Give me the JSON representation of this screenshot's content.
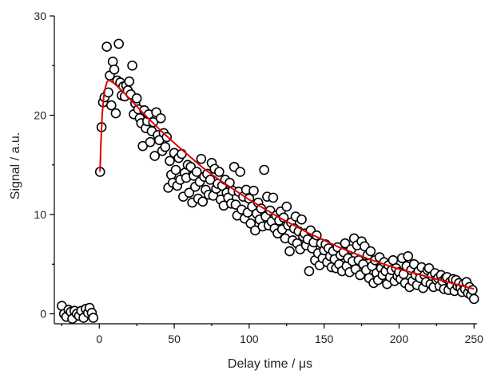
{
  "chart_data": {
    "type": "scatter",
    "xlabel": "Delay time / μs",
    "ylabel": "Signal / a.u.",
    "xlim": [
      -30,
      252
    ],
    "ylim": [
      -1,
      30
    ],
    "x_ticks": [
      0,
      50,
      100,
      150,
      200,
      250
    ],
    "y_ticks": [
      0,
      10,
      20,
      30
    ],
    "grid": false,
    "legend": "none",
    "series": [
      {
        "kind": "markers",
        "marker": "open-circle",
        "color": "#000000",
        "points": [
          [
            -25,
            0.8
          ],
          [
            -23.5,
            0
          ],
          [
            -22,
            -0.3
          ],
          [
            -20.5,
            0.4
          ],
          [
            -19,
            0.2
          ],
          [
            -18,
            -0.5
          ],
          [
            -16.5,
            0.3
          ],
          [
            -15,
            0
          ],
          [
            -13.5,
            -0.2
          ],
          [
            -12,
            0.3
          ],
          [
            -10.5,
            -0.4
          ],
          [
            -9,
            0.5
          ],
          [
            -7.5,
            0.1
          ],
          [
            -6.5,
            0.6
          ],
          [
            -5,
            0.1
          ],
          [
            -4,
            -0.4
          ],
          [
            0.5,
            14.3
          ],
          [
            1.5,
            18.8
          ],
          [
            2.5,
            21.3
          ],
          [
            3.5,
            21.8
          ],
          [
            5,
            26.9
          ],
          [
            6,
            22.3
          ],
          [
            7,
            24
          ],
          [
            8,
            21
          ],
          [
            9,
            25.4
          ],
          [
            10,
            24.6
          ],
          [
            11,
            20.2
          ],
          [
            12,
            23.5
          ],
          [
            13,
            27.2
          ],
          [
            14,
            23.3
          ],
          [
            15,
            22
          ],
          [
            16,
            22.9
          ],
          [
            17,
            21.9
          ],
          [
            18,
            23
          ],
          [
            19,
            22.5
          ],
          [
            20,
            23.4
          ],
          [
            21,
            22.1
          ],
          [
            22,
            25
          ],
          [
            23,
            20.1
          ],
          [
            24,
            21.2
          ],
          [
            25,
            21.7
          ],
          [
            26,
            20.6
          ],
          [
            27,
            19.7
          ],
          [
            28,
            19.2
          ],
          [
            29,
            16.9
          ],
          [
            30,
            20.5
          ],
          [
            31,
            18.7
          ],
          [
            32,
            19.4
          ],
          [
            33,
            20.1
          ],
          [
            34,
            17.3
          ],
          [
            35,
            18.4
          ],
          [
            36,
            19.3
          ],
          [
            37,
            15.9
          ],
          [
            38,
            20.3
          ],
          [
            39,
            18
          ],
          [
            40,
            17.5
          ],
          [
            41,
            19.7
          ],
          [
            42,
            16.4
          ],
          [
            43,
            18.2
          ],
          [
            44,
            16.8
          ],
          [
            45,
            17.8
          ],
          [
            46,
            12.7
          ],
          [
            47,
            15.4
          ],
          [
            48,
            14
          ],
          [
            49,
            13.2
          ],
          [
            50,
            16.2
          ],
          [
            51,
            14.5
          ],
          [
            52,
            12.9
          ],
          [
            53,
            15.7
          ],
          [
            54,
            13.5
          ],
          [
            55,
            16.1
          ],
          [
            56,
            11.8
          ],
          [
            57,
            14.2
          ],
          [
            58,
            13.7
          ],
          [
            59,
            15
          ],
          [
            60,
            12.2
          ],
          [
            61,
            14.8
          ],
          [
            62,
            11.2
          ],
          [
            63,
            13.9
          ],
          [
            64,
            12.8
          ],
          [
            65,
            14.3
          ],
          [
            66,
            11.6
          ],
          [
            67,
            13.3
          ],
          [
            68,
            15.6
          ],
          [
            69,
            11.3
          ],
          [
            70,
            13.8
          ],
          [
            71,
            12.5
          ],
          [
            72,
            14.1
          ],
          [
            73,
            12
          ],
          [
            74,
            13.5
          ],
          [
            75,
            15.2
          ],
          [
            76,
            11.9
          ],
          [
            77,
            14.6
          ],
          [
            78,
            12.6
          ],
          [
            79,
            13.1
          ],
          [
            80,
            14.3
          ],
          [
            81,
            11.5
          ],
          [
            82,
            12.9
          ],
          [
            83,
            10.9
          ],
          [
            84,
            13.5
          ],
          [
            85,
            12.2
          ],
          [
            86,
            11.7
          ],
          [
            87,
            13.2
          ],
          [
            88,
            11.1
          ],
          [
            89,
            12.4
          ],
          [
            90,
            14.8
          ],
          [
            91,
            11
          ],
          [
            92,
            9.9
          ],
          [
            93,
            12.3
          ],
          [
            94,
            14.3
          ],
          [
            95,
            10.5
          ],
          [
            96,
            11.8
          ],
          [
            97,
            9.6
          ],
          [
            98,
            12.5
          ],
          [
            99,
            10.2
          ],
          [
            100,
            11.6
          ],
          [
            101,
            9.1
          ],
          [
            102,
            10.8
          ],
          [
            103,
            12.4
          ],
          [
            104,
            8.4
          ],
          [
            105,
            10.1
          ],
          [
            106,
            11.2
          ],
          [
            107,
            9.5
          ],
          [
            108,
            10.6
          ],
          [
            109,
            8.8
          ],
          [
            110,
            14.5
          ],
          [
            111,
            9.8
          ],
          [
            112,
            11.8
          ],
          [
            113,
            8.9
          ],
          [
            114,
            10.4
          ],
          [
            115,
            9.3
          ],
          [
            116,
            11.7
          ],
          [
            117,
            8.6
          ],
          [
            118,
            9.9
          ],
          [
            119,
            8.1
          ],
          [
            120,
            9.4
          ],
          [
            121,
            10.3
          ],
          [
            122,
            8.5
          ],
          [
            123,
            9.7
          ],
          [
            124,
            7.6
          ],
          [
            125,
            10.8
          ],
          [
            126,
            8.9
          ],
          [
            127,
            6.3
          ],
          [
            128,
            9.2
          ],
          [
            129,
            7.4
          ],
          [
            130,
            8.6
          ],
          [
            131,
            9.8
          ],
          [
            132,
            7.1
          ],
          [
            133,
            8.3
          ],
          [
            134,
            6.5
          ],
          [
            135,
            9.5
          ],
          [
            136,
            7.8
          ],
          [
            137,
            8.1
          ],
          [
            138,
            6.9
          ],
          [
            139,
            7.5
          ],
          [
            140,
            4.3
          ],
          [
            141,
            8.4
          ],
          [
            142,
            6.6
          ],
          [
            143,
            7.2
          ],
          [
            144,
            5.4
          ],
          [
            145,
            7.9
          ],
          [
            146,
            6.1
          ],
          [
            147,
            4.9
          ],
          [
            148,
            7.1
          ],
          [
            149,
            5.6
          ],
          [
            150,
            6.4
          ],
          [
            151,
            7
          ],
          [
            152,
            5.2
          ],
          [
            153,
            6.6
          ],
          [
            154,
            5.8
          ],
          [
            155,
            4.7
          ],
          [
            156,
            6.3
          ],
          [
            157,
            5.5
          ],
          [
            158,
            4.6
          ],
          [
            159,
            6.7
          ],
          [
            160,
            5
          ],
          [
            161,
            5.9
          ],
          [
            162,
            4.3
          ],
          [
            163,
            6.2
          ],
          [
            164,
            7.1
          ],
          [
            165,
            4.8
          ],
          [
            166,
            5.6
          ],
          [
            167,
            4.2
          ],
          [
            168,
            6.5
          ],
          [
            169,
            5.3
          ],
          [
            170,
            7.6
          ],
          [
            171,
            4.5
          ],
          [
            172,
            6.9
          ],
          [
            173,
            5.4
          ],
          [
            174,
            3.9
          ],
          [
            175,
            7.3
          ],
          [
            176,
            5
          ],
          [
            177,
            6.8
          ],
          [
            178,
            4.4
          ],
          [
            179,
            5.9
          ],
          [
            180,
            3.6
          ],
          [
            181,
            6.3
          ],
          [
            182,
            4.8
          ],
          [
            183,
            3.1
          ],
          [
            184,
            5.4
          ],
          [
            185,
            4.1
          ],
          [
            186,
            3.4
          ],
          [
            187,
            5.7
          ],
          [
            188,
            4.6
          ],
          [
            189,
            3.9
          ],
          [
            190,
            5.2
          ],
          [
            191,
            4.3
          ],
          [
            192,
            3
          ],
          [
            193,
            4.9
          ],
          [
            194,
            3.7
          ],
          [
            195,
            4.4
          ],
          [
            196,
            5.4
          ],
          [
            197,
            3.3
          ],
          [
            198,
            4.6
          ],
          [
            199,
            3.8
          ],
          [
            200,
            4.2
          ],
          [
            201,
            3.5
          ],
          [
            202,
            5.6
          ],
          [
            203,
            4
          ],
          [
            204,
            3.1
          ],
          [
            205,
            4.8
          ],
          [
            206,
            5.8
          ],
          [
            207,
            2.7
          ],
          [
            208,
            4.4
          ],
          [
            209,
            3.3
          ],
          [
            210,
            5
          ],
          [
            211,
            3.9
          ],
          [
            212,
            2.9
          ],
          [
            213,
            4.3
          ],
          [
            214,
            3.6
          ],
          [
            215,
            4.7
          ],
          [
            216,
            2.6
          ],
          [
            217,
            3.9
          ],
          [
            218,
            3.2
          ],
          [
            219,
            4.4
          ],
          [
            220,
            4.6
          ],
          [
            221,
            3
          ],
          [
            222,
            3.8
          ],
          [
            223,
            2.7
          ],
          [
            224,
            4.1
          ],
          [
            225,
            3.4
          ],
          [
            226,
            3.6
          ],
          [
            227,
            2.8
          ],
          [
            228,
            3.9
          ],
          [
            229,
            3.3
          ],
          [
            230,
            2.5
          ],
          [
            231,
            3.6
          ],
          [
            232,
            3.7
          ],
          [
            233,
            2.4
          ],
          [
            234,
            3.2
          ],
          [
            235,
            2.9
          ],
          [
            236,
            3.5
          ],
          [
            237,
            2.3
          ],
          [
            238,
            3.4
          ],
          [
            239,
            2.8
          ],
          [
            240,
            3.1
          ],
          [
            241,
            2.6
          ],
          [
            242,
            2.2
          ],
          [
            243,
            3
          ],
          [
            244,
            2.5
          ],
          [
            245,
            3.2
          ],
          [
            246,
            2.1
          ],
          [
            247,
            2.7
          ],
          [
            248,
            1.9
          ],
          [
            249,
            2.4
          ],
          [
            250,
            1.5
          ]
        ]
      },
      {
        "kind": "fit-line",
        "color": "#e00000",
        "points": [
          [
            0.5,
            14.3
          ],
          [
            1,
            17
          ],
          [
            2,
            20.2
          ],
          [
            3,
            21.9
          ],
          [
            4,
            22.8
          ],
          [
            5,
            23.3
          ],
          [
            6,
            23.5
          ],
          [
            7,
            23.5
          ],
          [
            8,
            23.4
          ],
          [
            10,
            23.2
          ],
          [
            15,
            22.5
          ],
          [
            20,
            21.7
          ],
          [
            25,
            20.9
          ],
          [
            30,
            20.1
          ],
          [
            40,
            18.6
          ],
          [
            50,
            17.2
          ],
          [
            60,
            15.9
          ],
          [
            70,
            14.6
          ],
          [
            80,
            13.5
          ],
          [
            90,
            12.5
          ],
          [
            100,
            11.5
          ],
          [
            110,
            10.6
          ],
          [
            120,
            9.7
          ],
          [
            130,
            8.9
          ],
          [
            140,
            8.1
          ],
          [
            150,
            7.4
          ],
          [
            160,
            6.7
          ],
          [
            170,
            6.1
          ],
          [
            180,
            5.5
          ],
          [
            190,
            5
          ],
          [
            200,
            4.5
          ],
          [
            210,
            4.1
          ],
          [
            220,
            3.7
          ],
          [
            230,
            3.3
          ],
          [
            240,
            2.9
          ],
          [
            250,
            2.5
          ]
        ]
      }
    ]
  }
}
